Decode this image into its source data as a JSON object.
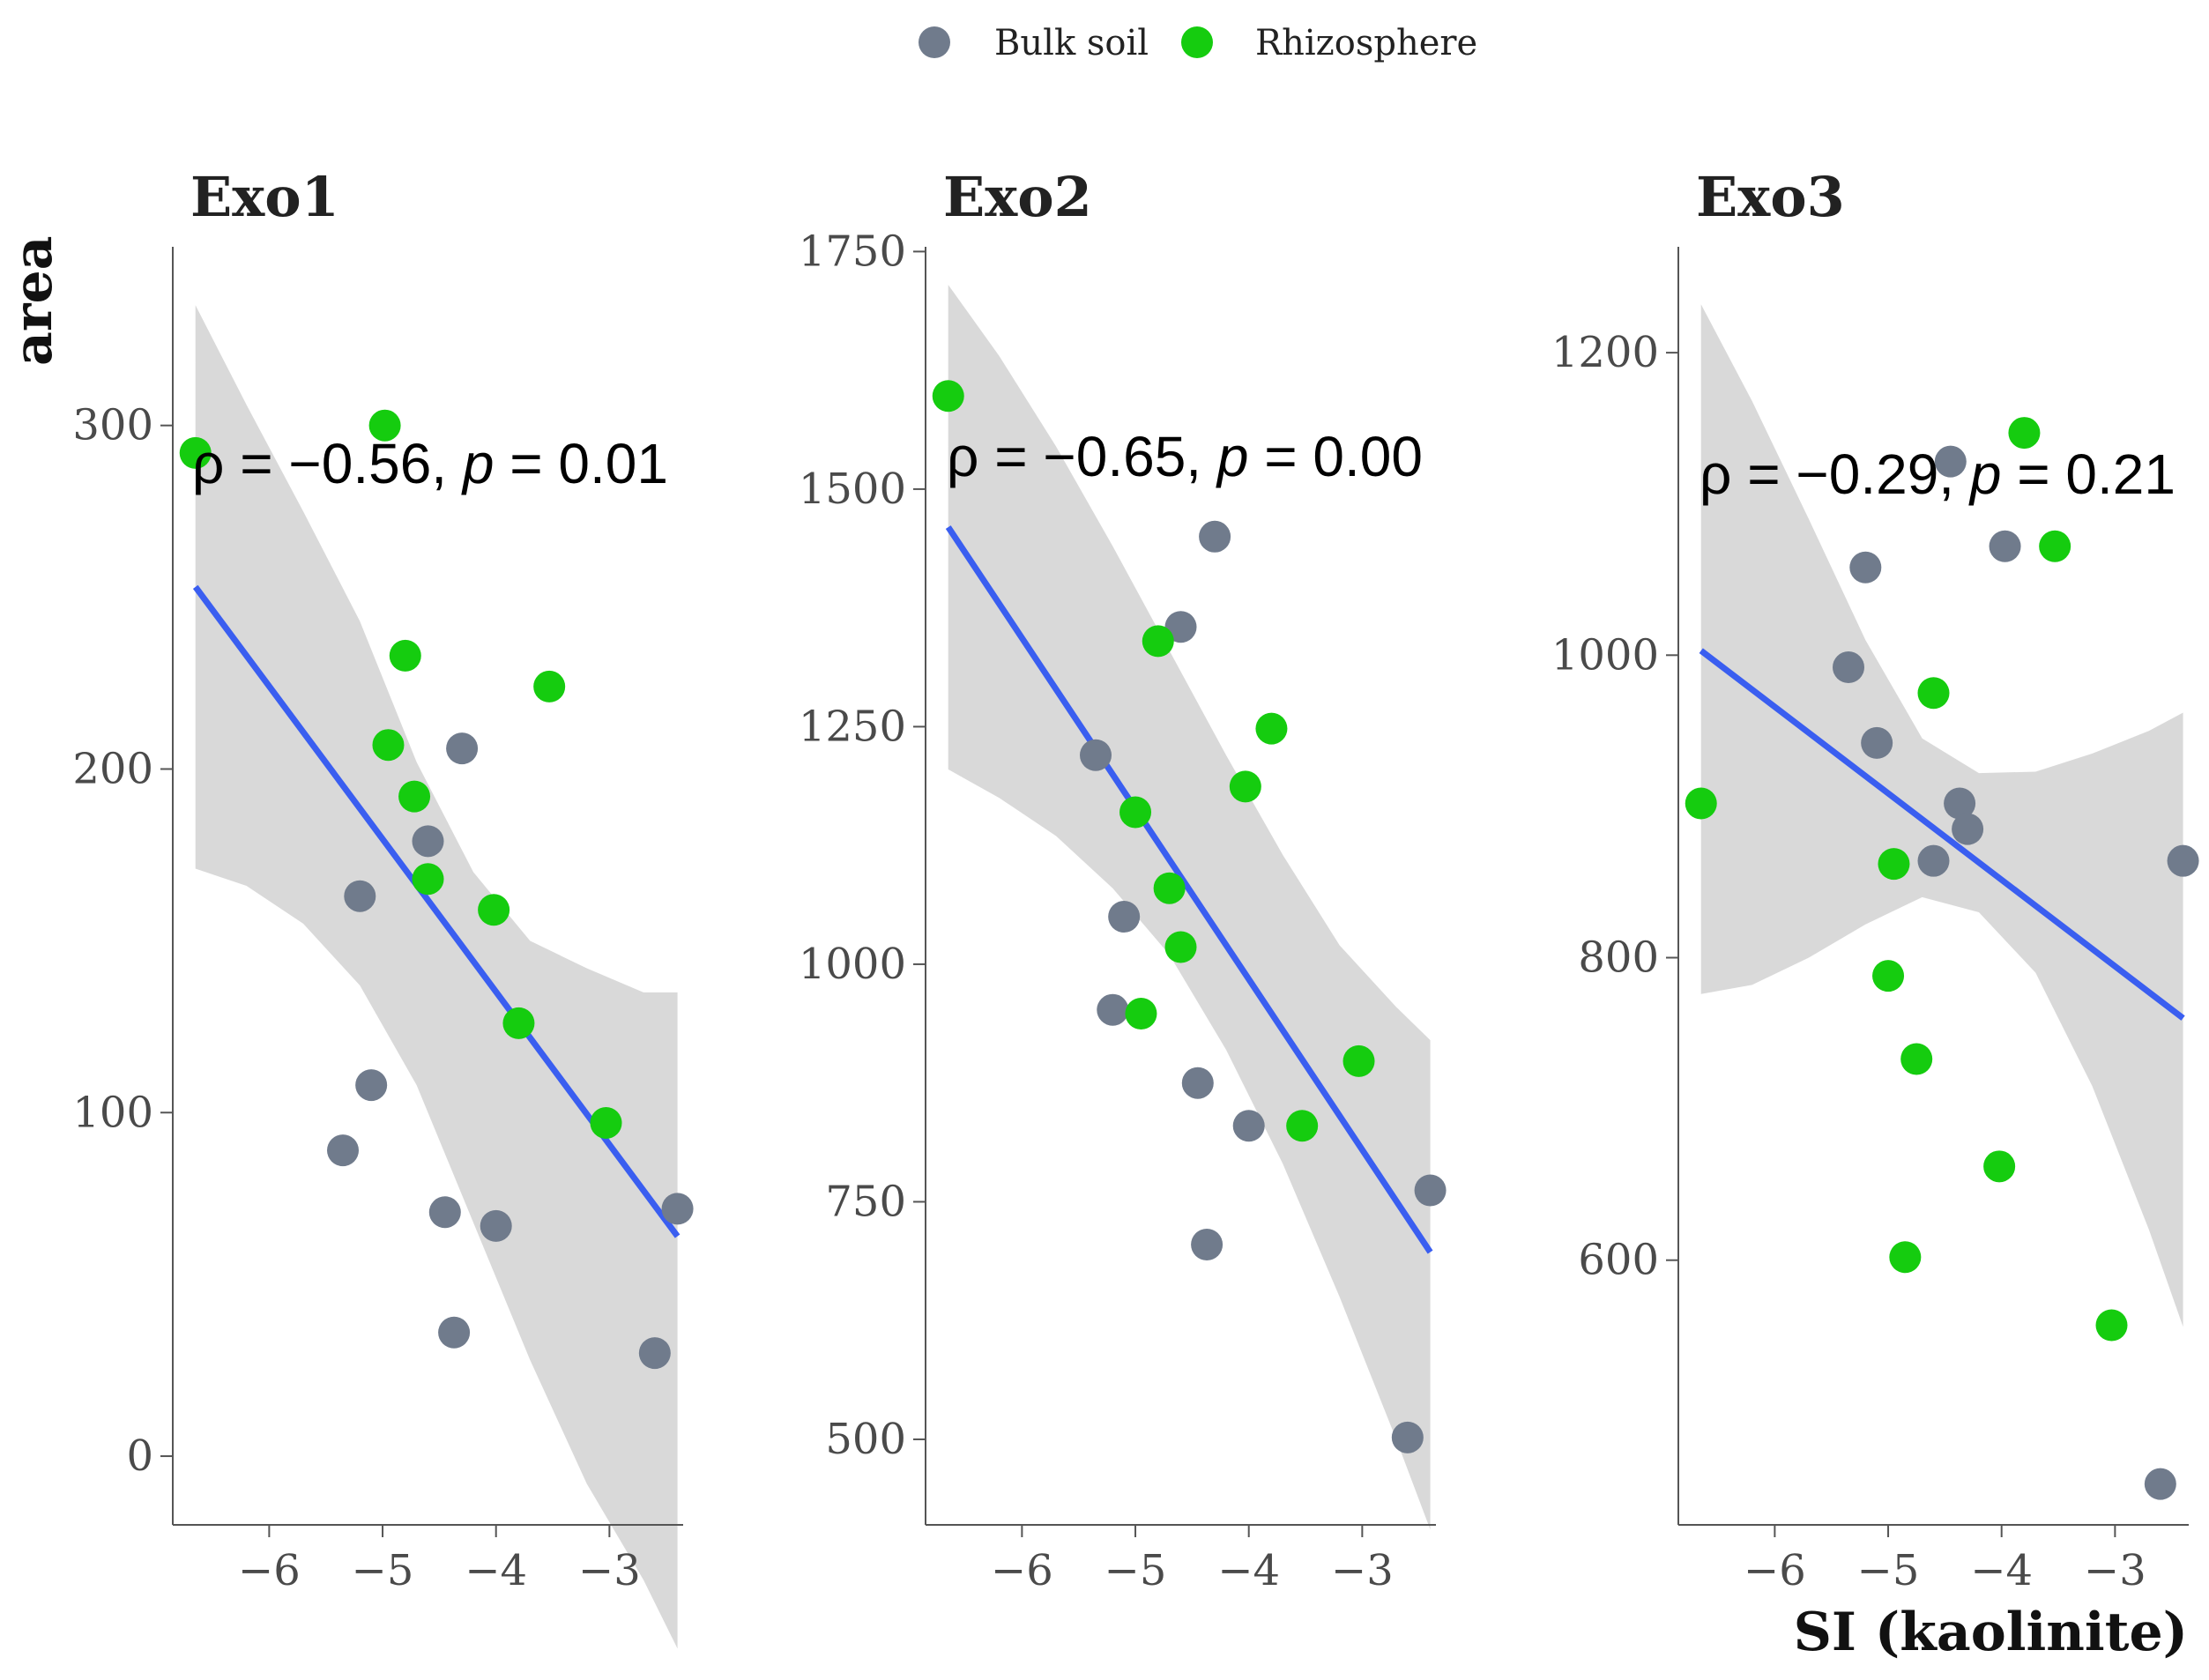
{
  "colors": {
    "bulk": "#707b8c",
    "rhizo": "#15cc0f",
    "fit": "#3a5ef0",
    "band": "#b9b9b9"
  },
  "legend": {
    "items": [
      {
        "label": "Bulk soil",
        "color": "#707b8c"
      },
      {
        "label": "Rhizosphere",
        "color": "#15cc0f"
      }
    ]
  },
  "axes": {
    "ylabel": "area",
    "xlabel": "SI (kaolinite)"
  },
  "chart_data": [
    {
      "type": "scatter",
      "title": "Exo1",
      "annotation": {
        "rho_prefix": "ρ = −",
        "rho": "0.56",
        "sep": ", ",
        "p_symbol": "p",
        "p_eq": " = ",
        "p": "0.01"
      },
      "xlim": [
        -6.85,
        -2.35
      ],
      "ylim": [
        -20,
        352
      ],
      "xticks": [
        -6,
        -5,
        -4,
        -3
      ],
      "xtick_labels": [
        "−6",
        "−5",
        "−4",
        "−3"
      ],
      "yticks": [
        0,
        100,
        200,
        300
      ],
      "ytick_labels": [
        "0",
        "100",
        "200",
        "300"
      ],
      "series": [
        {
          "name": "Bulk soil",
          "points": [
            [
              -4.3,
              206
            ],
            [
              -5.2,
              163
            ],
            [
              -4.6,
              179
            ],
            [
              -5.1,
              108
            ],
            [
              -5.35,
              89
            ],
            [
              -4.45,
              71
            ],
            [
              -4.0,
              67
            ],
            [
              -4.37,
              36
            ],
            [
              -2.6,
              30
            ],
            [
              -2.4,
              72
            ]
          ]
        },
        {
          "name": "Rhizosphere",
          "points": [
            [
              -6.65,
              292
            ],
            [
              -4.98,
              300
            ],
            [
              -4.8,
              233
            ],
            [
              -3.53,
              224
            ],
            [
              -4.95,
              207
            ],
            [
              -4.72,
              192
            ],
            [
              -4.6,
              168
            ],
            [
              -4.02,
              159
            ],
            [
              -3.8,
              126
            ],
            [
              -3.03,
              97
            ]
          ]
        }
      ],
      "fit": {
        "x": [
          -6.65,
          -2.4
        ],
        "y": [
          253,
          64
        ]
      },
      "band": {
        "x": [
          -6.65,
          -6.2,
          -5.7,
          -5.2,
          -4.7,
          -4.2,
          -3.7,
          -3.2,
          -2.7,
          -2.4
        ],
        "lower": [
          171,
          166,
          155,
          137,
          108,
          68,
          28,
          -8,
          -36,
          -56
        ],
        "upper": [
          335,
          306,
          275,
          243,
          202,
          170,
          150,
          142,
          135,
          135
        ]
      }
    },
    {
      "type": "scatter",
      "title": "Exo2",
      "annotation": {
        "rho_prefix": "ρ = −",
        "rho": "0.65",
        "sep": ", ",
        "p_symbol": "p",
        "p_eq": " = ",
        "p": "0.00"
      },
      "xlim": [
        -6.85,
        -2.35
      ],
      "ylim": [
        410,
        1755
      ],
      "xticks": [
        -6,
        -5,
        -4,
        -3
      ],
      "xtick_labels": [
        "−6",
        "−5",
        "−4",
        "−3"
      ],
      "yticks": [
        500,
        750,
        1000,
        1250,
        1500,
        1750
      ],
      "ytick_labels": [
        "500",
        "750",
        "1000",
        "1250",
        "1500",
        "1750"
      ],
      "series": [
        {
          "name": "Bulk soil",
          "points": [
            [
              -4.3,
              1450
            ],
            [
              -4.6,
              1355
            ],
            [
              -5.35,
              1220
            ],
            [
              -5.1,
              1050
            ],
            [
              -5.2,
              952
            ],
            [
              -4.45,
              875
            ],
            [
              -4.0,
              830
            ],
            [
              -4.37,
              705
            ],
            [
              -2.6,
              502
            ],
            [
              -2.4,
              762
            ]
          ]
        },
        {
          "name": "Rhizosphere",
          "points": [
            [
              -6.65,
              1598
            ],
            [
              -4.8,
              1340
            ],
            [
              -3.8,
              1248
            ],
            [
              -4.03,
              1187
            ],
            [
              -5.0,
              1160
            ],
            [
              -4.7,
              1080
            ],
            [
              -4.6,
              1018
            ],
            [
              -4.95,
              948
            ],
            [
              -3.03,
              898
            ],
            [
              -3.53,
              830
            ]
          ]
        }
      ],
      "fit": {
        "x": [
          -6.65,
          -2.4
        ],
        "y": [
          1460,
          697
        ]
      },
      "band": {
        "x": [
          -6.65,
          -6.2,
          -5.7,
          -5.2,
          -4.7,
          -4.2,
          -3.7,
          -3.2,
          -2.7,
          -2.4
        ],
        "lower": [
          1205,
          1175,
          1135,
          1080,
          1010,
          910,
          790,
          650,
          500,
          405
        ],
        "upper": [
          1715,
          1640,
          1545,
          1440,
          1330,
          1220,
          1115,
          1020,
          955,
          920
        ]
      }
    },
    {
      "type": "scatter",
      "title": "Exo3",
      "annotation": {
        "rho_prefix": "ρ = −",
        "rho": "0.29",
        "sep": ", ",
        "p_symbol": "p",
        "p_eq": " = ",
        "p": "0.21"
      },
      "xlim": [
        -6.85,
        -2.35
      ],
      "ylim": [
        425,
        1270
      ],
      "xticks": [
        -6,
        -5,
        -4,
        -3
      ],
      "xtick_labels": [
        "−6",
        "−5",
        "−4",
        "−3"
      ],
      "yticks": [
        600,
        800,
        1000,
        1200
      ],
      "ytick_labels": [
        "600",
        "800",
        "1000",
        "1200"
      ],
      "series": [
        {
          "name": "Bulk soil",
          "points": [
            [
              -4.45,
              1128
            ],
            [
              -3.97,
              1072
            ],
            [
              -5.2,
              1058
            ],
            [
              -5.35,
              992
            ],
            [
              -5.1,
              942
            ],
            [
              -4.37,
              902
            ],
            [
              -4.3,
              885
            ],
            [
              -4.6,
              864
            ],
            [
              -2.4,
              864
            ],
            [
              -2.6,
              452
            ]
          ]
        },
        {
          "name": "Rhizosphere",
          "points": [
            [
              -3.8,
              1147
            ],
            [
              -3.53,
              1072
            ],
            [
              -4.6,
              975
            ],
            [
              -6.65,
              902
            ],
            [
              -4.95,
              862
            ],
            [
              -5.0,
              788
            ],
            [
              -4.75,
              733
            ],
            [
              -4.02,
              662
            ],
            [
              -4.85,
              602
            ],
            [
              -3.03,
              557
            ]
          ]
        }
      ],
      "fit": {
        "x": [
          -6.65,
          -2.4
        ],
        "y": [
          1003,
          760
        ]
      },
      "band": {
        "x": [
          -6.65,
          -6.2,
          -5.7,
          -5.2,
          -4.7,
          -4.2,
          -3.7,
          -3.2,
          -2.7,
          -2.4
        ],
        "lower": [
          776,
          782,
          800,
          822,
          840,
          830,
          790,
          715,
          620,
          556
        ],
        "upper": [
          1232,
          1168,
          1090,
          1010,
          945,
          922,
          923,
          935,
          950,
          962
        ]
      }
    }
  ]
}
